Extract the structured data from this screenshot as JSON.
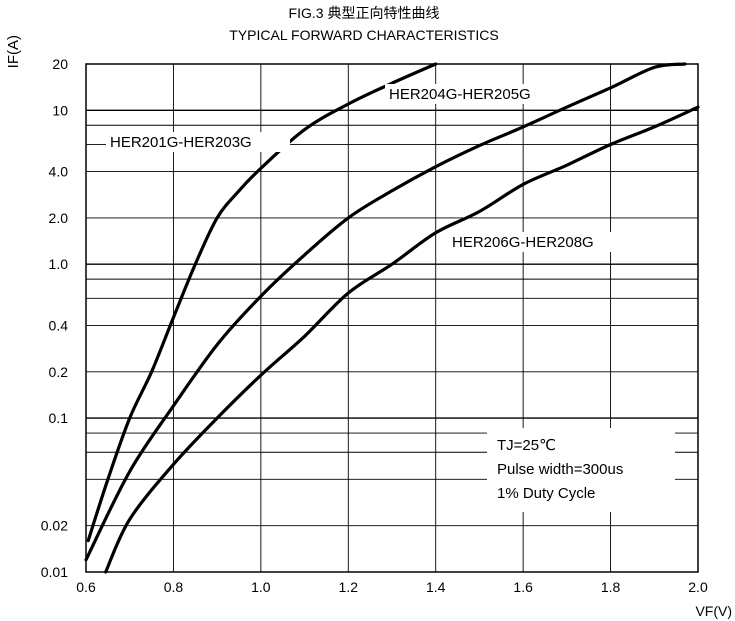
{
  "chart_data": {
    "type": "line",
    "title": "FIG.3 典型正向特性曲线",
    "subtitle": "TYPICAL FORWARD CHARACTERISTICS",
    "xlabel": "VF(V)",
    "ylabel": "IF(A)",
    "xscale": "linear",
    "yscale": "log",
    "xlim": [
      0.6,
      2.0
    ],
    "ylim": [
      0.01,
      20
    ],
    "grid": true,
    "x_ticks": [
      0.6,
      0.8,
      1.0,
      1.2,
      1.4,
      1.6,
      1.8,
      2.0
    ],
    "x_tick_labels": [
      "0.6",
      "0.8",
      "1.0",
      "1.2",
      "1.4",
      "1.6",
      "1.8",
      "2.0"
    ],
    "y_ticks": [
      0.01,
      0.02,
      0.1,
      0.2,
      0.4,
      1.0,
      2.0,
      4.0,
      10,
      20
    ],
    "y_tick_labels": [
      "0.01",
      "0.02",
      "0.1",
      "0.2",
      "0.4",
      "1.0",
      "2.0",
      "4.0",
      "10",
      "20"
    ],
    "y_gridlines": [
      0.02,
      0.04,
      0.06,
      0.08,
      0.1,
      0.2,
      0.4,
      0.6,
      0.8,
      1.0,
      2.0,
      4.0,
      6.0,
      8.0,
      10,
      20
    ],
    "series": [
      {
        "name": "HER201G-HER203G",
        "points": [
          [
            0.605,
            0.016
          ],
          [
            0.65,
            0.04
          ],
          [
            0.7,
            0.1
          ],
          [
            0.75,
            0.2
          ],
          [
            0.8,
            0.45
          ],
          [
            0.85,
            1.0
          ],
          [
            0.9,
            2.0
          ],
          [
            0.95,
            3.0
          ],
          [
            1.0,
            4.2
          ],
          [
            1.1,
            7.5
          ],
          [
            1.2,
            11
          ],
          [
            1.3,
            15
          ],
          [
            1.4,
            20
          ]
        ]
      },
      {
        "name": "HER204G-HER205G",
        "points": [
          [
            0.6,
            0.012
          ],
          [
            0.7,
            0.045
          ],
          [
            0.8,
            0.12
          ],
          [
            0.9,
            0.3
          ],
          [
            1.0,
            0.62
          ],
          [
            1.1,
            1.15
          ],
          [
            1.2,
            2.0
          ],
          [
            1.3,
            3.0
          ],
          [
            1.4,
            4.3
          ],
          [
            1.5,
            5.9
          ],
          [
            1.6,
            7.8
          ],
          [
            1.7,
            10.5
          ],
          [
            1.8,
            14
          ],
          [
            1.9,
            19
          ],
          [
            1.97,
            20
          ]
        ]
      },
      {
        "name": "HER206G-HER208G",
        "points": [
          [
            0.645,
            0.01
          ],
          [
            0.7,
            0.022
          ],
          [
            0.8,
            0.05
          ],
          [
            0.9,
            0.1
          ],
          [
            1.0,
            0.19
          ],
          [
            1.1,
            0.34
          ],
          [
            1.2,
            0.65
          ],
          [
            1.3,
            1.0
          ],
          [
            1.4,
            1.6
          ],
          [
            1.5,
            2.2
          ],
          [
            1.6,
            3.3
          ],
          [
            1.7,
            4.4
          ],
          [
            1.8,
            6.0
          ],
          [
            1.9,
            7.8
          ],
          [
            2.0,
            10.5
          ]
        ]
      }
    ],
    "annotations": [
      "TJ=25℃",
      "Pulse width=300us",
      "1% Duty Cycle"
    ]
  }
}
